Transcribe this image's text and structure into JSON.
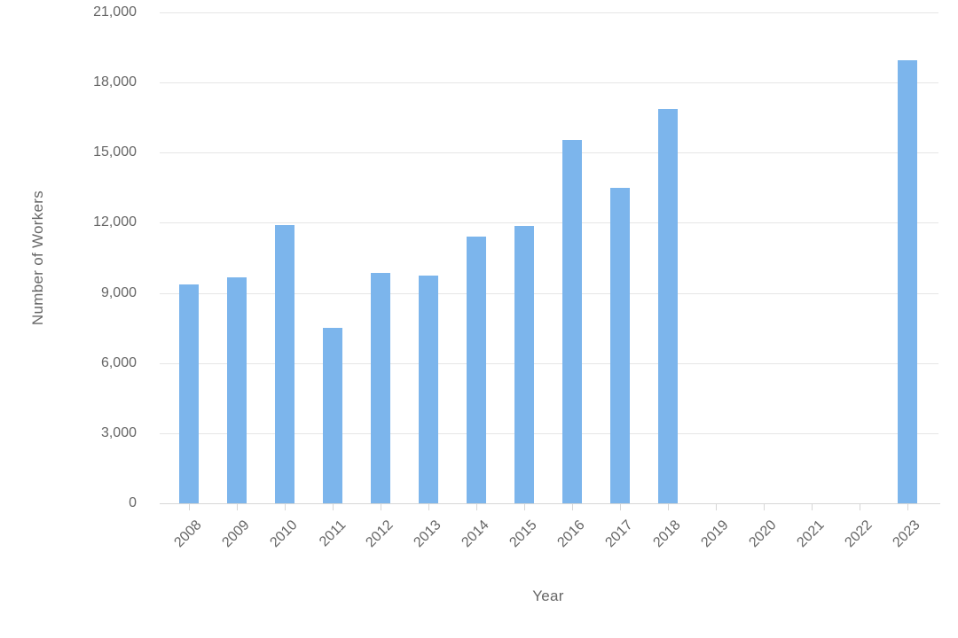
{
  "chart_data": {
    "type": "bar",
    "title": "",
    "xlabel": "Year",
    "ylabel": "Number of Workers",
    "categories": [
      "2008",
      "2009",
      "2010",
      "2011",
      "2012",
      "2013",
      "2014",
      "2015",
      "2016",
      "2017",
      "2018",
      "2019",
      "2020",
      "2021",
      "2022",
      "2023"
    ],
    "values": [
      9350,
      9650,
      11900,
      7500,
      9850,
      9750,
      11400,
      11850,
      15550,
      13500,
      16850,
      0,
      0,
      0,
      0,
      18950
    ],
    "ylim": [
      0,
      21000
    ],
    "ytick_interval": 3000,
    "ytick_labels": [
      "0",
      "3,000",
      "6,000",
      "9,000",
      "12,000",
      "15,000",
      "18,000",
      "21,000"
    ],
    "grid": true,
    "legend_position": "none",
    "colors": {
      "bar": "#7cb5ec",
      "grid": "#e6e6e6",
      "axis_line": "#d6d6d6",
      "text": "#666666",
      "background": "#ffffff"
    }
  }
}
